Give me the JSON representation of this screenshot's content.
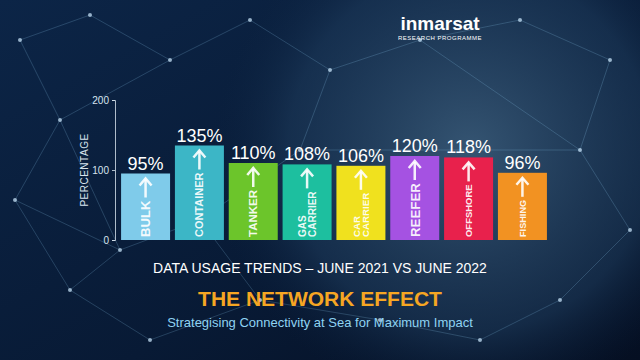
{
  "chart_data": {
    "type": "bar",
    "title": "THE NETWORK EFFECT",
    "subtitle": "Strategising Connectivity at Sea for Maximum Impact",
    "xlabel": "DATA USAGE TRENDS – JUNE 2021 VS JUNE 2022",
    "ylabel": "PERCENTAGE",
    "annotations": [
      "inmarsat",
      "RESEARCH PROGRAMME"
    ],
    "categories": [
      "BULK",
      "CONTAINER",
      "TANKER",
      "GAS CARRIER",
      "CAR CARRIER",
      "REEFER",
      "OFFSHORE",
      "FISHING"
    ],
    "values": [
      95,
      135,
      110,
      108,
      106,
      120,
      118,
      96
    ],
    "value_labels": [
      "95%",
      "135%",
      "110%",
      "108%",
      "106%",
      "120%",
      "118%",
      "96%"
    ],
    "colors": [
      "#7fcbea",
      "#3cb6c6",
      "#6cc52b",
      "#1dbf9f",
      "#f0e11e",
      "#a552e2",
      "#e8214c",
      "#f29222"
    ],
    "ylim": [
      0,
      200
    ],
    "yticks": [
      0,
      100,
      200
    ],
    "grid": false,
    "data_labels": true
  }
}
